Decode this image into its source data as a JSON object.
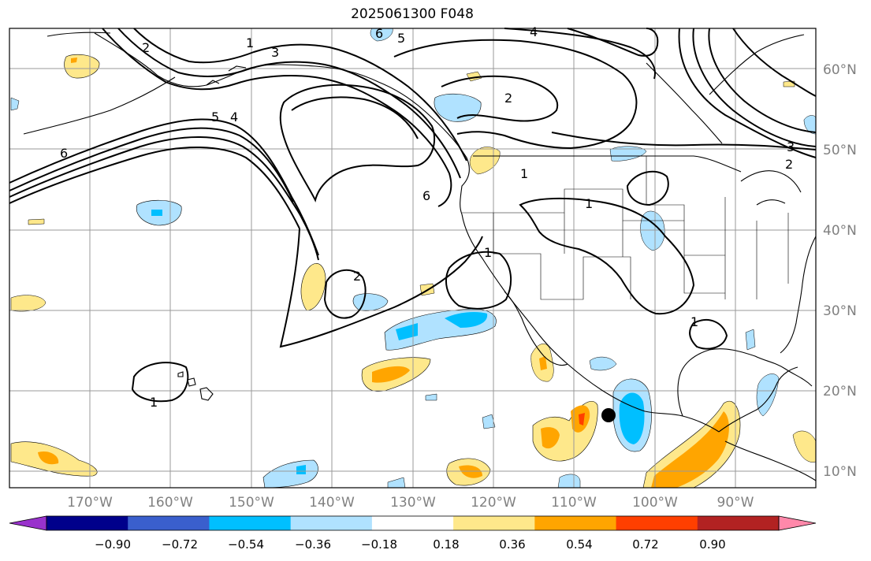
{
  "title": "2025061300 F048",
  "map": {
    "lon_labels": [
      "170°W",
      "160°W",
      "150°W",
      "140°W",
      "130°W",
      "120°W",
      "110°W",
      "100°W",
      "90°W"
    ],
    "lat_labels": [
      "60°N",
      "50°N",
      "40°N",
      "30°N",
      "20°N",
      "10°N"
    ],
    "contour_labels": [
      "1",
      "2",
      "3",
      "4",
      "5",
      "6",
      "1",
      "2",
      "1",
      "1",
      "1",
      "2",
      "5",
      "6",
      "4",
      "3",
      "2",
      "6",
      "1"
    ],
    "marker": "storm-center-dot"
  },
  "colorbar": {
    "ticks": [
      "−0.90",
      "−0.72",
      "−0.54",
      "−0.36",
      "−0.18",
      "0.18",
      "0.36",
      "0.54",
      "0.72",
      "0.90"
    ],
    "colors": [
      "#9932cc",
      "#00008b",
      "#3a5fcd",
      "#00bfff",
      "#b0e2ff",
      "#ffffff",
      "#fee88b",
      "#ffa500",
      "#ff3f00",
      "#b22222",
      "#ff88aa"
    ]
  }
}
